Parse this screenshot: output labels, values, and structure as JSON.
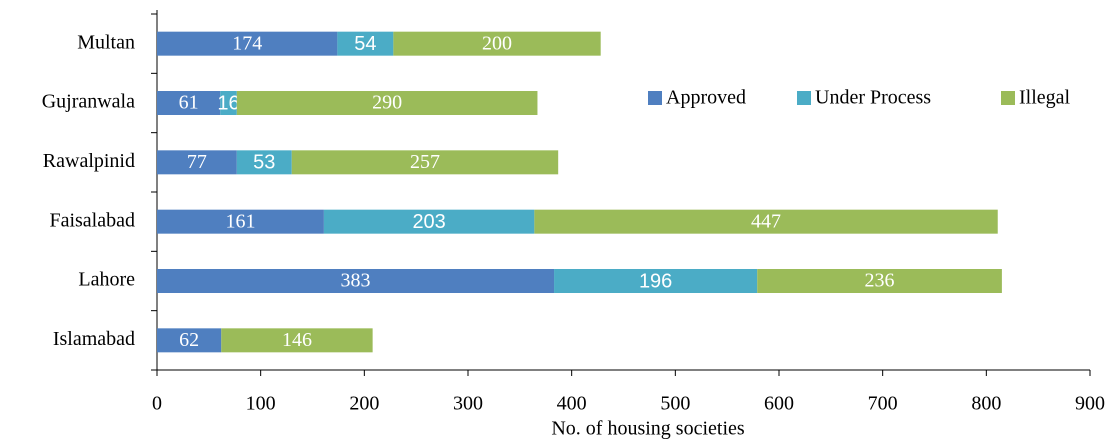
{
  "chart_data": {
    "type": "bar",
    "orientation": "horizontal",
    "stacked": true,
    "categories": [
      "Multan",
      "Gujranwala",
      "Rawalpinid",
      "Faisalabad",
      "Lahore",
      "Islamabad"
    ],
    "series": [
      {
        "name": "Approved",
        "color": "#4f7fc0",
        "values": [
          174,
          61,
          77,
          161,
          383,
          62
        ]
      },
      {
        "name": "Under Process",
        "color": "#4bacc6",
        "values": [
          54,
          16,
          53,
          203,
          196,
          null
        ]
      },
      {
        "name": "Illegal",
        "color": "#9bbb59",
        "values": [
          200,
          290,
          257,
          447,
          236,
          146
        ]
      }
    ],
    "xlabel": "No. of housing societies",
    "xlim": [
      0,
      900
    ],
    "xticks": [
      0,
      100,
      200,
      300,
      400,
      500,
      600,
      700,
      800,
      900
    ],
    "legend": "upper right",
    "grid": false
  }
}
